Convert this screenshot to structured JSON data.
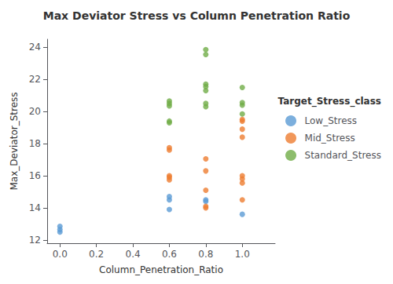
{
  "chart_data": {
    "type": "scatter",
    "title": "Max Deviator Stress vs Column Penetration Ratio",
    "x_label": "Column_Penetration_Ratio",
    "y_label": "Max_Deviator_Stress",
    "xlim": [
      -0.07,
      1.18
    ],
    "ylim": [
      11.8,
      24.5
    ],
    "xticks": [
      {
        "value": 0,
        "label": "0.0"
      },
      0.2,
      0.4,
      0.6,
      0.8,
      {
        "value": 1,
        "label": "1.0"
      }
    ],
    "yticks": [
      12,
      14,
      16,
      18,
      20,
      22,
      24
    ],
    "grid": false,
    "legend": "right",
    "legend_title": "Target_Stress_class",
    "series": [
      {
        "name": "Low_Stress",
        "color": "#5b9bd5",
        "x": [
          0.0,
          0.0,
          0.0,
          0.6,
          0.6,
          0.6,
          0.8,
          0.8,
          1.0
        ],
        "values": [
          12.85,
          12.65,
          12.5,
          14.7,
          14.5,
          13.9,
          14.5,
          14.4,
          13.6
        ]
      },
      {
        "name": "Mid_Stress",
        "color": "#ed7d31",
        "x": [
          0.6,
          0.6,
          0.6,
          0.6,
          0.6,
          0.8,
          0.8,
          0.8,
          0.8,
          0.8,
          1.0,
          1.0,
          1.0,
          1.0,
          1.0,
          1.0,
          1.0,
          1.0
        ],
        "values": [
          17.75,
          17.6,
          16.0,
          15.9,
          15.75,
          17.05,
          16.3,
          15.1,
          14.1,
          14.0,
          19.5,
          19.4,
          18.9,
          18.4,
          16.0,
          15.8,
          15.55,
          14.5
        ]
      },
      {
        "name": "Standard_Stress",
        "color": "#70ad47",
        "x": [
          0.6,
          0.6,
          0.6,
          0.6,
          0.6,
          0.8,
          0.8,
          0.8,
          0.8,
          0.8,
          0.8,
          0.8,
          1.0,
          1.0,
          1.0,
          1.0
        ],
        "values": [
          20.65,
          20.5,
          20.35,
          19.4,
          19.3,
          23.85,
          23.55,
          21.7,
          21.55,
          21.3,
          20.5,
          20.3,
          21.5,
          20.55,
          20.4,
          19.85
        ]
      }
    ]
  }
}
